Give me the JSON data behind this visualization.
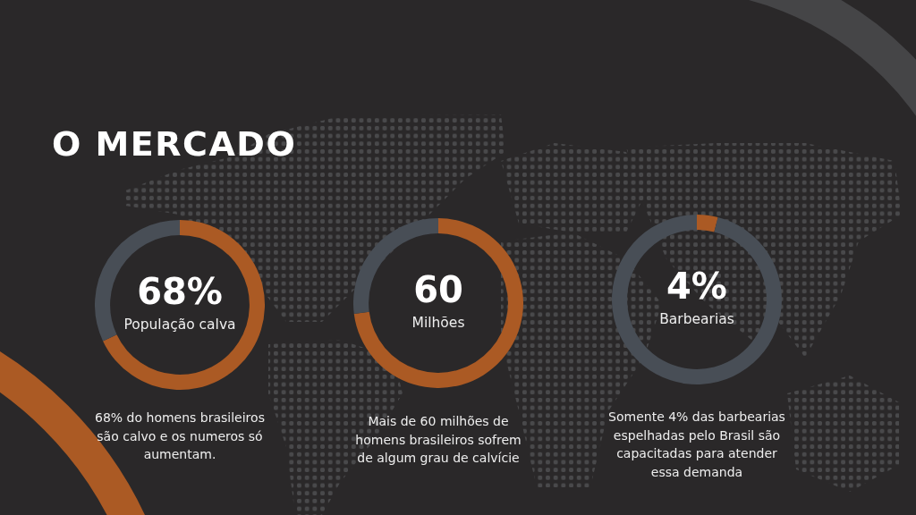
{
  "chart_data": [
    {
      "type": "other",
      "title": "O MERCADO"
    },
    {
      "type": "donut",
      "title": "68%",
      "subtitle": "População calva",
      "categories": [
        null,
        null
      ],
      "values": [
        68,
        32
      ],
      "colors": [
        "#ab5a24",
        "#484e56"
      ],
      "annotations": [
        "68% do homens brasileiros são calvo e os numeros só aumentam."
      ]
    },
    {
      "type": "donut",
      "title": "60",
      "subtitle": "Milhões",
      "categories": [
        null,
        null
      ],
      "values": [
        73,
        27
      ],
      "colors": [
        "#ab5a24",
        "#484e56"
      ],
      "annotations": [
        "Mais de 60 milhões de homens brasileiros sofrem de algum grau de calvície"
      ]
    },
    {
      "type": "donut",
      "title": "4%",
      "subtitle": "Barbearias",
      "categories": [
        null,
        null
      ],
      "values": [
        4,
        96
      ],
      "colors": [
        "#ab5a24",
        "#484e56"
      ],
      "annotations": [
        "Somente 4% das barbearias espelhadas pelo Brasil são capacitadas para atender essa demanda"
      ]
    }
  ]
}
